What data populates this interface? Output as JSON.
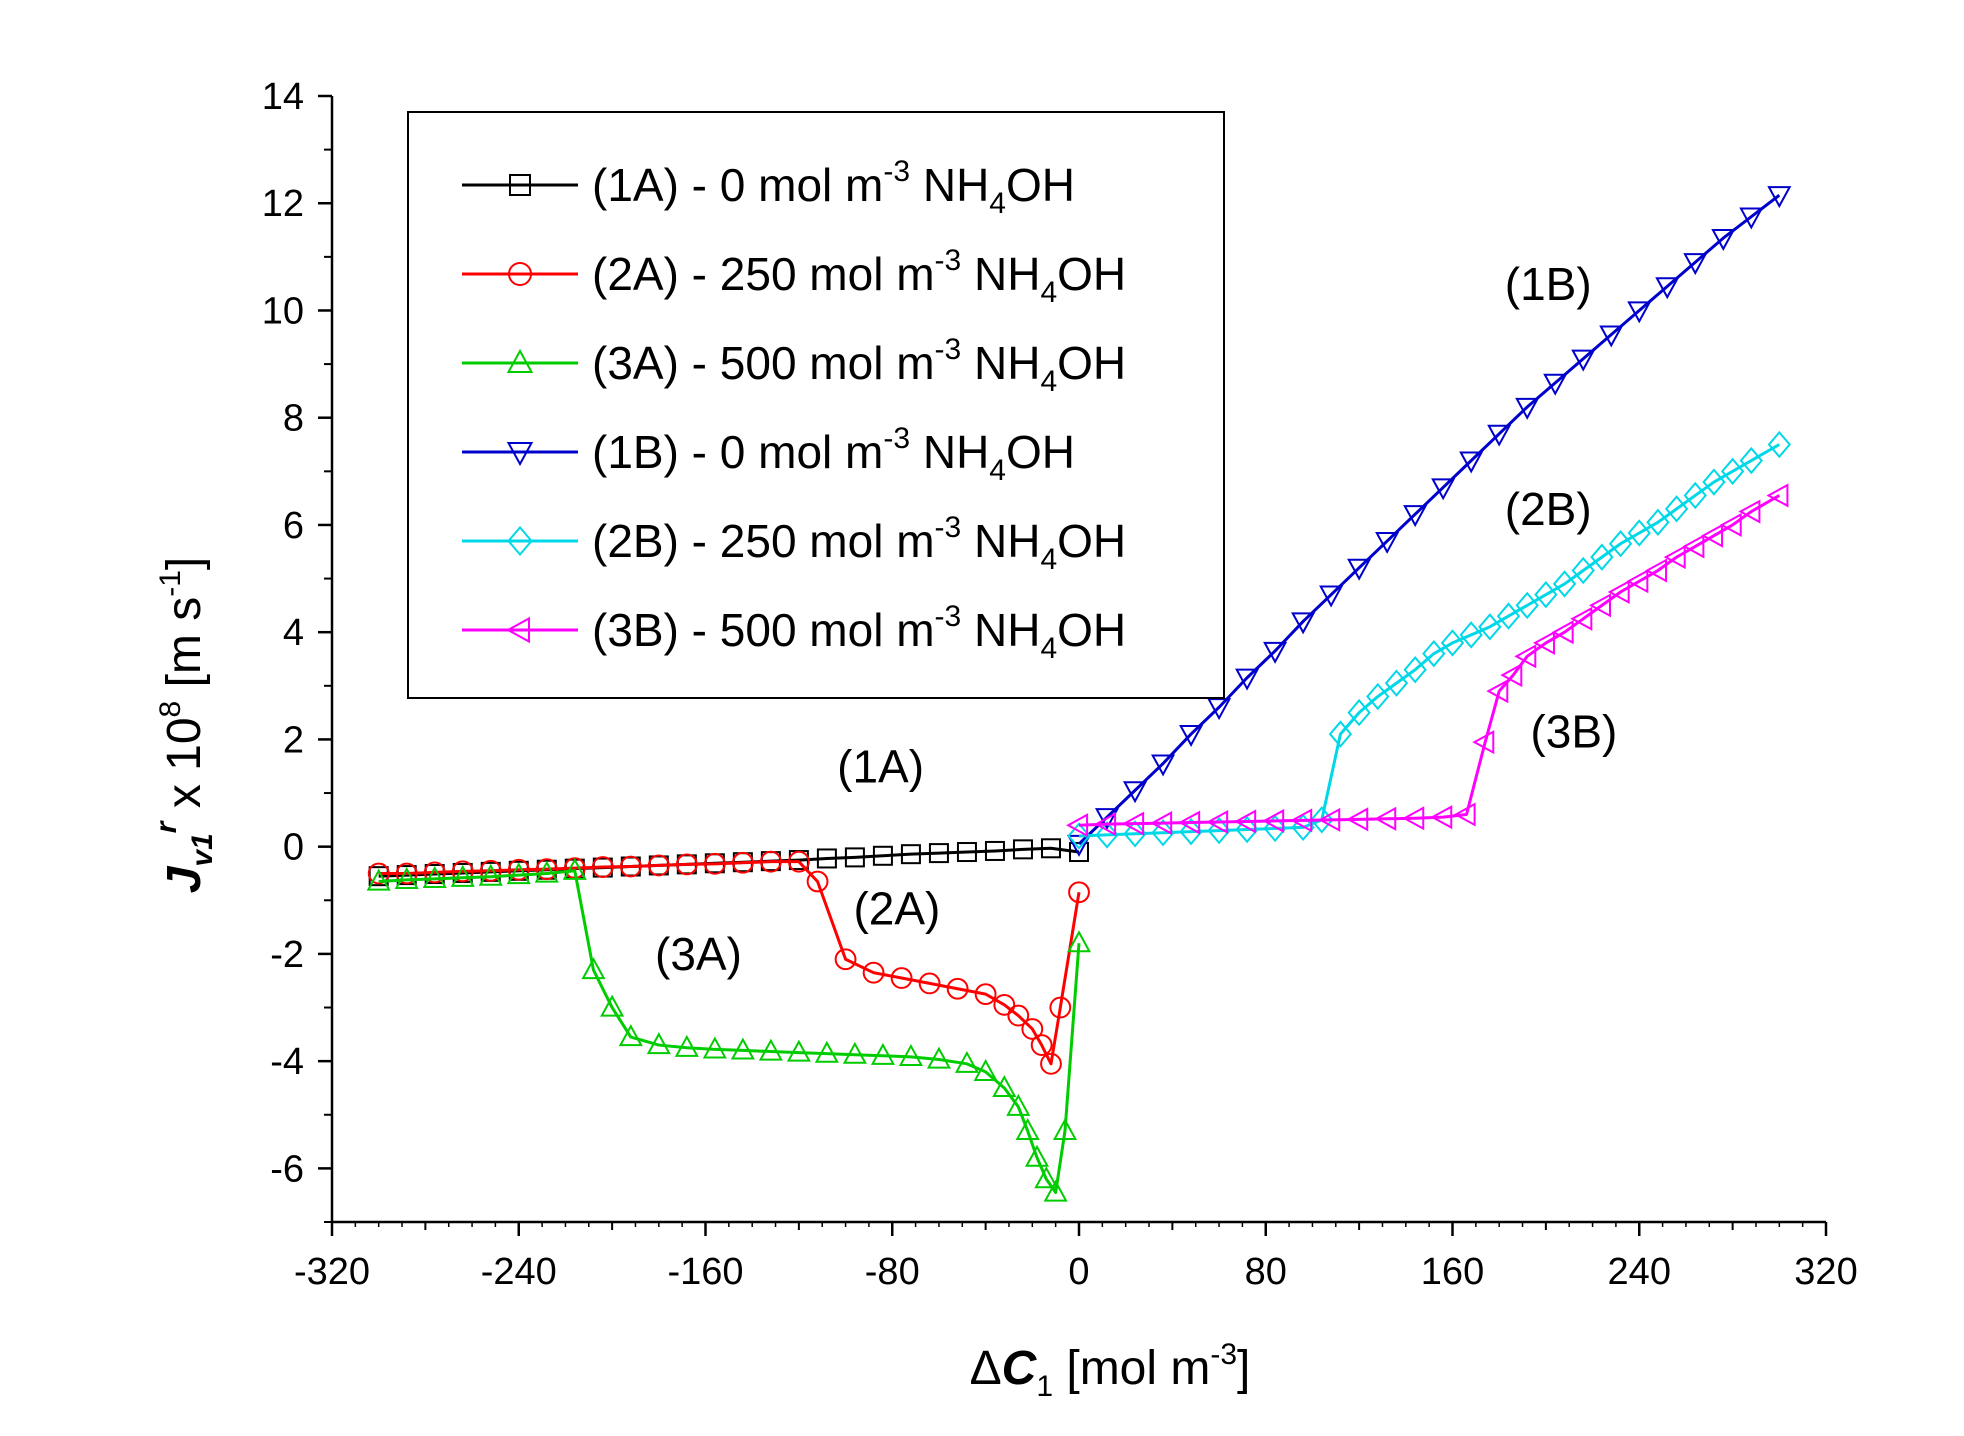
{
  "chart_data": {
    "type": "line",
    "xlabel": {
      "prefix": "Δ",
      "var": "C",
      "sub": "1",
      "unit": " [mol m",
      "sup": "-3",
      "close": "]"
    },
    "ylabel": {
      "var": "J",
      "sub": "v1",
      "sup": "r",
      "mid": " x 10",
      "exp": "8",
      "unit": " [m s",
      "unit_sup": "-1",
      "close": "]"
    },
    "xlim": [
      -320,
      320
    ],
    "ylim": [
      -7,
      14
    ],
    "xticks": [
      -320,
      -240,
      -160,
      -80,
      0,
      80,
      160,
      240,
      320
    ],
    "yticks": [
      -6,
      -4,
      -2,
      0,
      2,
      4,
      6,
      8,
      10,
      12,
      14
    ],
    "series": [
      {
        "name": "(1A) - 0 mol m-3 NH4OH",
        "legend": {
          "pre": "(1A) - 0 mol m",
          "sup": "-3",
          "mid": " NH",
          "sub": "4",
          "post": "OH"
        },
        "color": "#000000",
        "marker": "square",
        "x": [
          -300,
          -288,
          -276,
          -264,
          -252,
          -240,
          -228,
          -216,
          -204,
          -192,
          -180,
          -168,
          -156,
          -144,
          -132,
          -120,
          -108,
          -96,
          -84,
          -72,
          -60,
          -48,
          -36,
          -24,
          -12,
          0
        ],
        "y": [
          -0.55,
          -0.53,
          -0.51,
          -0.49,
          -0.47,
          -0.45,
          -0.43,
          -0.41,
          -0.39,
          -0.37,
          -0.35,
          -0.33,
          -0.31,
          -0.29,
          -0.27,
          -0.25,
          -0.22,
          -0.2,
          -0.17,
          -0.14,
          -0.12,
          -0.1,
          -0.08,
          -0.05,
          -0.03,
          -0.1
        ]
      },
      {
        "name": "(2A) - 250 mol m-3 NH4OH",
        "legend": {
          "pre": "(2A) - 250 mol m",
          "sup": "-3",
          "mid": " NH",
          "sub": "4",
          "post": "OH"
        },
        "color": "#ff0000",
        "marker": "circle",
        "x": [
          -300,
          -288,
          -276,
          -264,
          -252,
          -240,
          -228,
          -216,
          -204,
          -192,
          -180,
          -168,
          -156,
          -144,
          -132,
          -120,
          -112,
          -100,
          -88,
          -76,
          -64,
          -52,
          -40,
          -32,
          -26,
          -20,
          -16,
          -12,
          -8,
          0
        ],
        "y": [
          -0.5,
          -0.5,
          -0.48,
          -0.46,
          -0.45,
          -0.43,
          -0.42,
          -0.4,
          -0.38,
          -0.37,
          -0.35,
          -0.33,
          -0.32,
          -0.3,
          -0.28,
          -0.28,
          -0.65,
          -2.1,
          -2.35,
          -2.45,
          -2.55,
          -2.65,
          -2.75,
          -2.95,
          -3.15,
          -3.4,
          -3.7,
          -4.05,
          -3.0,
          -0.85
        ]
      },
      {
        "name": "(3A) - 500 mol m-3 NH4OH",
        "legend": {
          "pre": "(3A) - 500 mol m",
          "sup": "-3",
          "mid": " NH",
          "sub": "4",
          "post": "OH"
        },
        "color": "#00cc00",
        "marker": "triangle-up",
        "x": [
          -300,
          -288,
          -276,
          -264,
          -252,
          -240,
          -228,
          -216,
          -208,
          -200,
          -192,
          -180,
          -168,
          -156,
          -144,
          -132,
          -120,
          -108,
          -96,
          -84,
          -72,
          -60,
          -48,
          -40,
          -32,
          -26,
          -22,
          -18,
          -14,
          -10,
          -6,
          0
        ],
        "y": [
          -0.65,
          -0.62,
          -0.6,
          -0.58,
          -0.56,
          -0.53,
          -0.5,
          -0.45,
          -2.3,
          -3.0,
          -3.55,
          -3.7,
          -3.75,
          -3.78,
          -3.8,
          -3.82,
          -3.84,
          -3.86,
          -3.88,
          -3.9,
          -3.92,
          -3.97,
          -4.05,
          -4.2,
          -4.5,
          -4.85,
          -5.3,
          -5.8,
          -6.2,
          -6.45,
          -5.3,
          -1.8
        ]
      },
      {
        "name": "(1B) - 0 mol m-3 NH4OH",
        "legend": {
          "pre": "(1B) - 0 mol m",
          "sup": "-3",
          "mid": " NH",
          "sub": "4",
          "post": "OH"
        },
        "color": "#0000cc",
        "marker": "triangle-down",
        "x": [
          0,
          12,
          24,
          36,
          48,
          60,
          72,
          84,
          96,
          108,
          120,
          132,
          144,
          156,
          168,
          180,
          192,
          204,
          216,
          228,
          240,
          252,
          264,
          276,
          288,
          300
        ],
        "y": [
          0.05,
          0.55,
          1.05,
          1.55,
          2.1,
          2.6,
          3.15,
          3.65,
          4.2,
          4.7,
          5.2,
          5.7,
          6.2,
          6.7,
          7.2,
          7.7,
          8.2,
          8.65,
          9.1,
          9.55,
          10.0,
          10.45,
          10.9,
          11.35,
          11.75,
          12.15
        ]
      },
      {
        "name": "(2B) - 250 mol m-3 NH4OH",
        "legend": {
          "pre": "(2B) - 250 mol m",
          "sup": "-3",
          "mid": " NH",
          "sub": "4",
          "post": "OH"
        },
        "color": "#00d8e8",
        "marker": "diamond",
        "x": [
          0,
          12,
          24,
          36,
          48,
          60,
          72,
          84,
          96,
          104,
          112,
          120,
          128,
          136,
          144,
          152,
          160,
          168,
          176,
          184,
          192,
          200,
          208,
          216,
          224,
          232,
          240,
          248,
          256,
          264,
          272,
          280,
          288,
          300
        ],
        "y": [
          0.2,
          0.22,
          0.24,
          0.26,
          0.28,
          0.3,
          0.32,
          0.34,
          0.36,
          0.5,
          2.1,
          2.5,
          2.8,
          3.05,
          3.3,
          3.6,
          3.8,
          3.95,
          4.1,
          4.3,
          4.5,
          4.7,
          4.9,
          5.15,
          5.4,
          5.65,
          5.85,
          6.05,
          6.3,
          6.55,
          6.8,
          7.0,
          7.2,
          7.5
        ]
      },
      {
        "name": "(3B) - 500 mol m-3 NH4OH",
        "legend": {
          "pre": "(3B) - 500 mol m",
          "sup": "-3",
          "mid": " NH",
          "sub": "4",
          "post": "OH"
        },
        "color": "#ff00ff",
        "marker": "triangle-left",
        "x": [
          0,
          12,
          24,
          36,
          48,
          60,
          72,
          84,
          96,
          108,
          120,
          132,
          144,
          156,
          166,
          174,
          180,
          186,
          192,
          200,
          208,
          216,
          224,
          232,
          240,
          248,
          256,
          264,
          272,
          280,
          288,
          300
        ],
        "y": [
          0.4,
          0.42,
          0.43,
          0.44,
          0.45,
          0.46,
          0.47,
          0.48,
          0.49,
          0.5,
          0.51,
          0.52,
          0.53,
          0.55,
          0.6,
          1.95,
          2.9,
          3.2,
          3.55,
          3.8,
          4.0,
          4.25,
          4.5,
          4.75,
          4.95,
          5.15,
          5.4,
          5.6,
          5.8,
          6.0,
          6.25,
          6.55
        ]
      }
    ],
    "annotations": [
      {
        "text": "(1A)",
        "x": -85,
        "y": 1.2
      },
      {
        "text": "(2A)",
        "x": -78,
        "y": -1.45
      },
      {
        "text": "(3A)",
        "x": -163,
        "y": -2.3
      },
      {
        "text": "(1B)",
        "x": 201,
        "y": 10.2
      },
      {
        "text": "(2B)",
        "x": 201,
        "y": 6.0
      },
      {
        "text": "(3B)",
        "x": 212,
        "y": 1.85
      }
    ]
  }
}
